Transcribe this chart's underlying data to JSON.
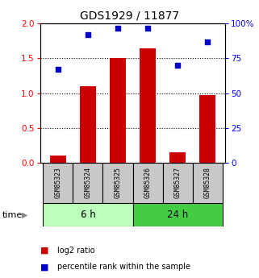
{
  "title": "GDS1929 / 11877",
  "samples": [
    "GSM85323",
    "GSM85324",
    "GSM85325",
    "GSM85326",
    "GSM85327",
    "GSM85328"
  ],
  "log2_ratio": [
    0.1,
    1.1,
    1.5,
    1.65,
    0.15,
    0.97
  ],
  "percentile_rank": [
    67,
    92,
    97,
    97,
    70,
    87
  ],
  "bar_color": "#cc0000",
  "dot_color": "#0000cc",
  "group1_label": "6 h",
  "group2_label": "24 h",
  "group1_color": "#bbffbb",
  "group2_color": "#44cc44",
  "ylim_left": [
    0,
    2
  ],
  "ylim_right": [
    0,
    100
  ],
  "left_ticks": [
    0,
    0.5,
    1.0,
    1.5,
    2.0
  ],
  "right_ticks": [
    0,
    25,
    50,
    75,
    100
  ],
  "right_tick_labels": [
    "0",
    "25",
    "50",
    "75",
    "100%"
  ],
  "grid_values": [
    0.5,
    1.0,
    1.5
  ],
  "legend_bar_label": "log2 ratio",
  "legend_dot_label": "percentile rank within the sample",
  "time_label": "time",
  "bar_width": 0.55
}
